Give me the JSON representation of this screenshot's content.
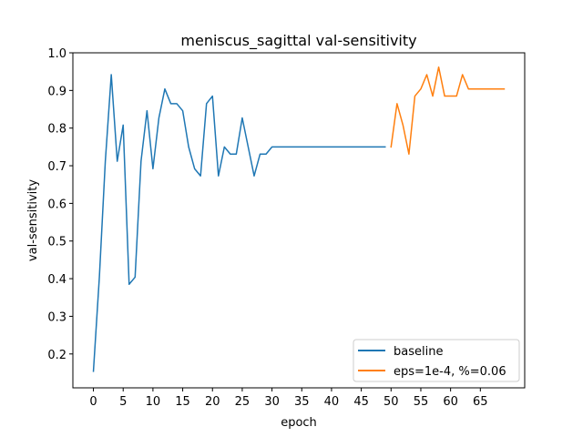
{
  "chart_data": {
    "type": "line",
    "title": "meniscus_sagittal val-sensitivity",
    "xlabel": "epoch",
    "ylabel": "val-sensitivity",
    "xlim": [
      -3.45,
      72.45
    ],
    "ylim": [
      0.11,
      1.0
    ],
    "xticks": [
      0,
      5,
      10,
      15,
      20,
      25,
      30,
      35,
      40,
      45,
      50,
      55,
      60,
      65
    ],
    "yticks": [
      0.2,
      0.3,
      0.4,
      0.5,
      0.6,
      0.7,
      0.8,
      0.9,
      1.0
    ],
    "grid": false,
    "legend_position": "lower-right",
    "series": [
      {
        "name": "baseline",
        "color": "#1f77b4",
        "x": [
          0,
          1,
          2,
          3,
          4,
          5,
          6,
          7,
          8,
          9,
          10,
          11,
          12,
          13,
          14,
          15,
          16,
          17,
          18,
          19,
          20,
          21,
          22,
          23,
          24,
          25,
          26,
          27,
          28,
          29,
          30,
          31,
          32,
          33,
          34,
          35,
          36,
          37,
          38,
          39,
          40,
          41,
          42,
          43,
          44,
          45,
          46,
          47,
          48,
          49
        ],
        "y": [
          0.154,
          0.404,
          0.712,
          0.942,
          0.712,
          0.808,
          0.385,
          0.404,
          0.712,
          0.846,
          0.692,
          0.827,
          0.904,
          0.865,
          0.865,
          0.846,
          0.75,
          0.692,
          0.673,
          0.865,
          0.885,
          0.673,
          0.75,
          0.731,
          0.731,
          0.827,
          0.75,
          0.673,
          0.731,
          0.731,
          0.75,
          0.75,
          0.75,
          0.75,
          0.75,
          0.75,
          0.75,
          0.75,
          0.75,
          0.75,
          0.75,
          0.75,
          0.75,
          0.75,
          0.75,
          0.75,
          0.75,
          0.75,
          0.75,
          0.75
        ]
      },
      {
        "name": "eps=1e-4, %=0.06",
        "color": "#ff7f0e",
        "x": [
          50,
          51,
          52,
          53,
          54,
          55,
          56,
          57,
          58,
          59,
          60,
          61,
          62,
          63,
          64,
          65,
          66,
          67,
          68,
          69
        ],
        "y": [
          0.75,
          0.865,
          0.808,
          0.731,
          0.885,
          0.904,
          0.942,
          0.885,
          0.962,
          0.885,
          0.885,
          0.885,
          0.942,
          0.904,
          0.904,
          0.904,
          0.904,
          0.904,
          0.904,
          0.904
        ]
      }
    ]
  }
}
